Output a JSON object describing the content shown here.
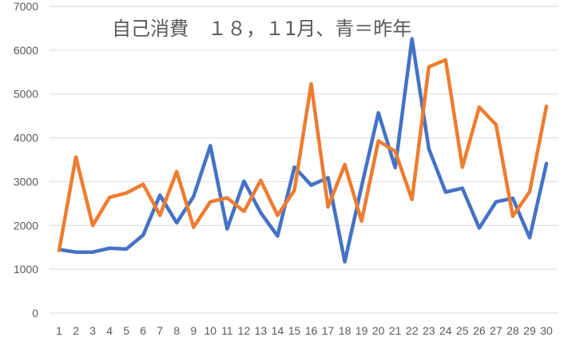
{
  "chart_data": {
    "type": "line",
    "title": "自己消費　１８，１1月、青＝昨年",
    "xlabel": "",
    "ylabel": "",
    "x": [
      1,
      2,
      3,
      4,
      5,
      6,
      7,
      8,
      9,
      10,
      11,
      12,
      13,
      14,
      15,
      16,
      17,
      18,
      19,
      20,
      21,
      22,
      23,
      24,
      25,
      26,
      27,
      28,
      29,
      30
    ],
    "ylim": [
      0,
      7000
    ],
    "yticks": [
      0,
      1000,
      2000,
      3000,
      4000,
      5000,
      6000,
      7000
    ],
    "grid": true,
    "legend": "none",
    "series": [
      {
        "color": "#4472c4",
        "values": [
          1450,
          1390,
          1390,
          1480,
          1460,
          1780,
          2690,
          2060,
          2660,
          3820,
          1920,
          3010,
          2290,
          1760,
          3330,
          2920,
          3090,
          1170,
          2890,
          4570,
          3320,
          6260,
          3750,
          2760,
          2850,
          1940,
          2540,
          2620,
          1720,
          3410
        ]
      },
      {
        "color": "#ed7d31",
        "values": [
          1430,
          3560,
          2000,
          2640,
          2740,
          2940,
          2230,
          3230,
          1960,
          2540,
          2630,
          2320,
          3030,
          2230,
          2800,
          5230,
          2420,
          3390,
          2100,
          3930,
          3690,
          2590,
          5620,
          5780,
          3330,
          4700,
          4300,
          2210,
          2770,
          4720
        ]
      }
    ]
  }
}
